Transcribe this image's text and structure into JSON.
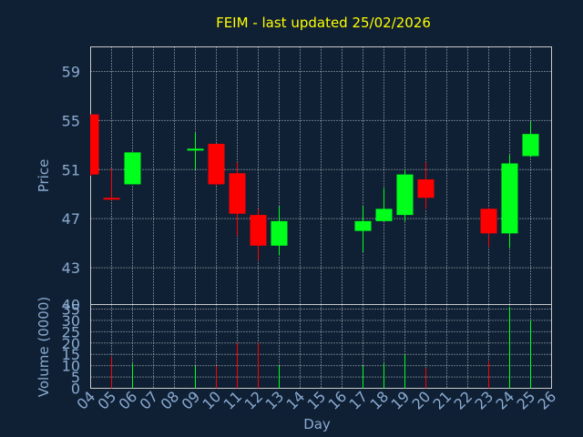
{
  "chart_data": {
    "type": "candlestick",
    "title": "FEIM - last updated 25/02/2026",
    "xlabel": "Day",
    "price_axis": {
      "label": "Price",
      "ylim": [
        40,
        61
      ],
      "ticks": [
        43,
        47,
        51,
        55,
        59
      ],
      "bottom_tick": 40,
      "grid": true
    },
    "volume_axis": {
      "label": "Volume (0000)",
      "ylim": [
        0,
        37
      ],
      "ticks": [
        0,
        5,
        10,
        15,
        20,
        25,
        30,
        35
      ],
      "grid": true
    },
    "x_ticks": [
      "04",
      "05",
      "06",
      "07",
      "08",
      "09",
      "10",
      "11",
      "12",
      "13",
      "14",
      "15",
      "16",
      "17",
      "18",
      "19",
      "20",
      "21",
      "22",
      "23",
      "24",
      "25",
      "26"
    ],
    "x_tick_values": [
      4,
      5,
      6,
      7,
      8,
      9,
      10,
      11,
      12,
      13,
      14,
      15,
      16,
      17,
      18,
      19,
      20,
      21,
      22,
      23,
      24,
      25,
      26
    ],
    "xlim": [
      4,
      26
    ],
    "candles": [
      {
        "day": 4,
        "open": 55.5,
        "high": 55.5,
        "low": 50.5,
        "close": 50.6
      },
      {
        "day": 5,
        "open": 48.7,
        "high": 51.1,
        "low": 48.5,
        "close": 48.6
      },
      {
        "day": 6,
        "open": 49.8,
        "high": 52.4,
        "low": 49.8,
        "close": 52.4
      },
      {
        "day": 9,
        "open": 52.7,
        "high": 54.0,
        "low": 51.0,
        "close": 52.7
      },
      {
        "day": 10,
        "open": 53.1,
        "high": 53.1,
        "low": 49.7,
        "close": 49.8
      },
      {
        "day": 11,
        "open": 50.7,
        "high": 51.6,
        "low": 45.6,
        "close": 47.4
      },
      {
        "day": 12,
        "open": 47.3,
        "high": 47.8,
        "low": 43.6,
        "close": 44.8
      },
      {
        "day": 13,
        "open": 44.8,
        "high": 48.0,
        "low": 44.0,
        "close": 46.8
      },
      {
        "day": 17,
        "open": 46.0,
        "high": 48.0,
        "low": 44.3,
        "close": 46.8
      },
      {
        "day": 18,
        "open": 46.8,
        "high": 49.5,
        "low": 46.8,
        "close": 47.8
      },
      {
        "day": 19,
        "open": 47.3,
        "high": 51.0,
        "low": 46.8,
        "close": 50.6
      },
      {
        "day": 20,
        "open": 50.2,
        "high": 51.6,
        "low": 47.8,
        "close": 48.7
      },
      {
        "day": 23,
        "open": 47.8,
        "high": 47.9,
        "low": 44.7,
        "close": 45.8
      },
      {
        "day": 24,
        "open": 45.8,
        "high": 52.2,
        "low": 44.6,
        "close": 51.5
      },
      {
        "day": 25,
        "open": 52.1,
        "high": 54.9,
        "low": 52.1,
        "close": 53.9
      }
    ],
    "volume": [
      {
        "day": 5,
        "value": 14,
        "color": "red"
      },
      {
        "day": 6,
        "value": 11,
        "color": "green"
      },
      {
        "day": 9,
        "value": 10,
        "color": "green"
      },
      {
        "day": 10,
        "value": 10,
        "color": "red"
      },
      {
        "day": 11,
        "value": 20,
        "color": "red"
      },
      {
        "day": 12,
        "value": 20,
        "color": "red"
      },
      {
        "day": 13,
        "value": 10,
        "color": "green"
      },
      {
        "day": 17,
        "value": 10,
        "color": "green"
      },
      {
        "day": 18,
        "value": 11,
        "color": "green"
      },
      {
        "day": 19,
        "value": 15,
        "color": "green"
      },
      {
        "day": 20,
        "value": 9,
        "color": "red"
      },
      {
        "day": 23,
        "value": 12,
        "color": "red"
      },
      {
        "day": 24,
        "value": 36,
        "color": "green"
      },
      {
        "day": 25,
        "value": 30,
        "color": "green"
      }
    ]
  },
  "colors": {
    "background": "#0f2034",
    "title": "#ffff00",
    "axis_text": "#8aaad0",
    "up": "#00ff1a",
    "down": "#ff0000",
    "wick_up": "#00ff1a",
    "wick_down": "#ff0000",
    "grid": "#ffffff",
    "frame": "#c9c9c9"
  }
}
